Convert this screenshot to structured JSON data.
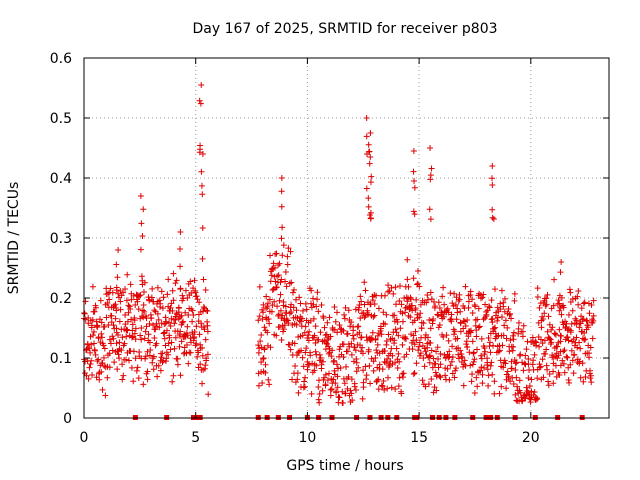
{
  "chart_data": {
    "type": "scatter",
    "title": "Day 167 of 2025, SRMTID for receiver p803",
    "xlabel": "GPS time / hours",
    "ylabel": "SRMTID / TECUs",
    "xlim": [
      0,
      23.5
    ],
    "ylim": [
      0,
      0.6
    ],
    "xticks": [
      0,
      5,
      10,
      15,
      20
    ],
    "yticks": [
      0,
      0.1,
      0.2,
      0.3,
      0.4,
      0.5,
      0.6
    ],
    "xtick_labels": [
      "0",
      "5",
      "10",
      "15",
      "20"
    ],
    "ytick_labels": [
      "0",
      "0.1",
      "0.2",
      "0.3",
      "0.4",
      "0.5",
      "0.6"
    ],
    "grid": true,
    "marker": "+",
    "color": "#e00000",
    "data_gaps_hours": [
      [
        5.6,
        7.8
      ],
      [
        22.8,
        23.5
      ]
    ],
    "peaks": [
      {
        "x": 1.5,
        "y": 0.28
      },
      {
        "x": 2.6,
        "y": 0.37
      },
      {
        "x": 4.3,
        "y": 0.31
      },
      {
        "x": 5.2,
        "y": 0.555
      },
      {
        "x": 5.3,
        "y": 0.44
      },
      {
        "x": 8.9,
        "y": 0.4
      },
      {
        "x": 12.7,
        "y": 0.5
      },
      {
        "x": 12.8,
        "y": 0.475
      },
      {
        "x": 12.8,
        "y": 0.435
      },
      {
        "x": 14.8,
        "y": 0.445
      },
      {
        "x": 15.5,
        "y": 0.45
      },
      {
        "x": 18.3,
        "y": 0.42
      },
      {
        "x": 21.3,
        "y": 0.26
      }
    ],
    "zero_markers_x": [
      2.3,
      3.7,
      4.9,
      5.0,
      5.1,
      5.2,
      7.8,
      8.2,
      8.7,
      9.2,
      10.0,
      10.5,
      11.1,
      12.2,
      12.8,
      13.3,
      13.6,
      14.0,
      14.8,
      14.9,
      15.6,
      15.9,
      16.2,
      16.6,
      17.4,
      18.0,
      18.2,
      18.5,
      19.3,
      20.2,
      21.2,
      22.3
    ]
  }
}
